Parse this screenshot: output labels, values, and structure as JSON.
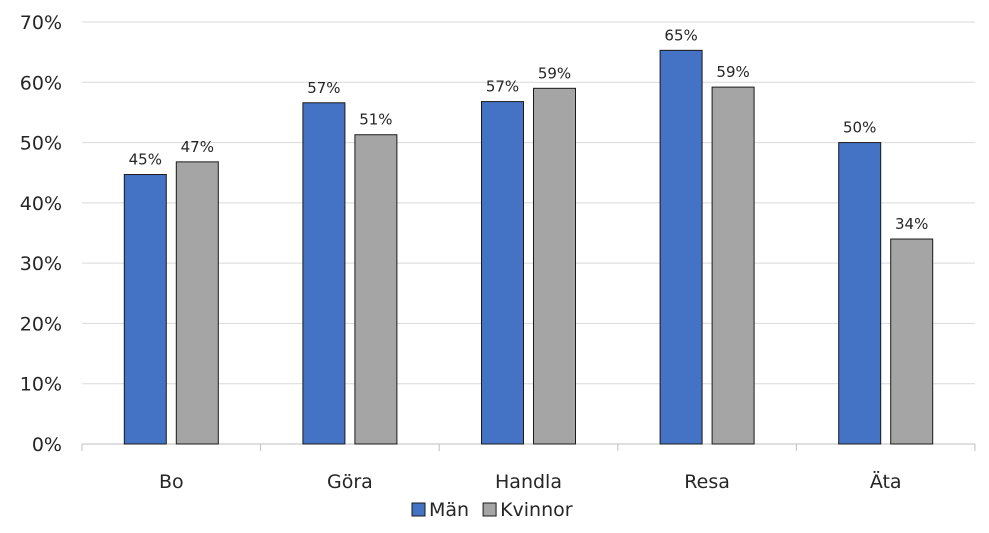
{
  "chart_data": {
    "type": "bar",
    "categories": [
      "Bo",
      "Göra",
      "Handla",
      "Resa",
      "Äta"
    ],
    "series": [
      {
        "name": "Män",
        "color": "#4472C4",
        "values": [
          44.7,
          56.6,
          56.8,
          65.3,
          50.0
        ],
        "labels": [
          "45%",
          "57%",
          "57%",
          "65%",
          "50%"
        ]
      },
      {
        "name": "Kvinnor",
        "color": "#A5A5A5",
        "values": [
          46.8,
          51.3,
          59.0,
          59.2,
          34.0
        ],
        "labels": [
          "47%",
          "51%",
          "59%",
          "59%",
          "34%"
        ]
      }
    ],
    "y_ticks": [
      "0%",
      "10%",
      "20%",
      "30%",
      "40%",
      "50%",
      "60%",
      "70%"
    ],
    "ylim": [
      0,
      70
    ],
    "grid": true,
    "legend_position": "bottom"
  }
}
